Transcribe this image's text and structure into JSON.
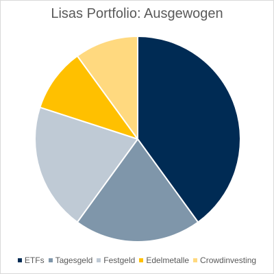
{
  "chart_data": {
    "type": "pie",
    "title": "Lisas Portfolio: Ausgewogen",
    "categories": [
      "ETFs",
      "Tagesgeld",
      "Festgeld",
      "Edelmetalle",
      "Crowdinvesting"
    ],
    "values": [
      40,
      20,
      20,
      10,
      10
    ],
    "colors": [
      "#002b54",
      "#7f96aa",
      "#bfcad5",
      "#ffc000",
      "#ffd97f"
    ],
    "start_angle_deg": 0,
    "direction": "clockwise",
    "legend_position": "bottom"
  }
}
